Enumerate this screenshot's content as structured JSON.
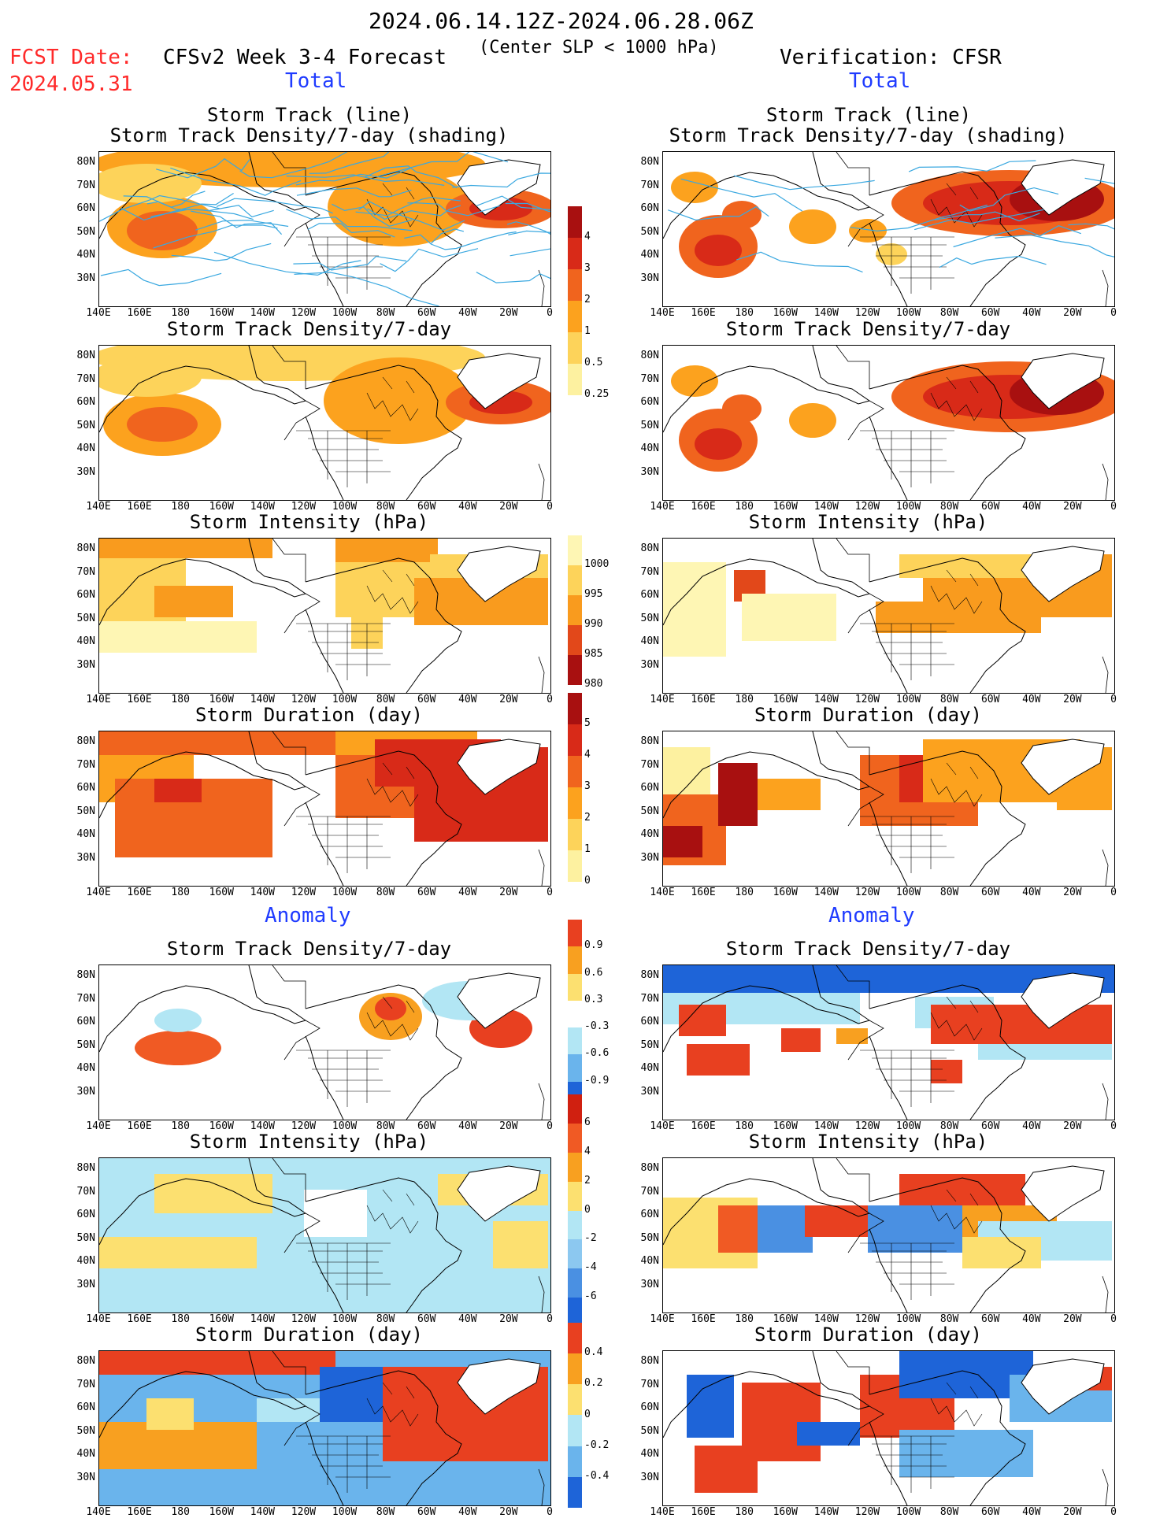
{
  "header": {
    "period": "2024.06.14.12Z-2024.06.28.06Z",
    "fcst_label": "FCST Date:",
    "fcst_date": "2024.05.31",
    "model": "CFSv2 Week 3-4 Forecast",
    "criterion": "(Center SLP < 1000 hPa)",
    "verification": "Verification: CFSR"
  },
  "sections": {
    "total": "Total",
    "anomaly": "Anomaly"
  },
  "panel_titles": {
    "track_line": "Storm Track (line)",
    "track_density_shading": "Storm Track Density/7-day (shading)",
    "track_density": "Storm Track Density/7-day",
    "intensity": "Storm Intensity (hPa)",
    "duration": "Storm Duration (day)"
  },
  "axes": {
    "lat_labels": [
      "80N",
      "70N",
      "60N",
      "50N",
      "40N",
      "30N"
    ],
    "lon_labels": [
      "140E",
      "160E",
      "180",
      "160W",
      "140W",
      "120W",
      "100W",
      "80W",
      "60W",
      "40W",
      "20W",
      "0"
    ]
  },
  "colorbars": {
    "density_total": {
      "labels": [
        "4",
        "3",
        "2",
        "1",
        "0.5",
        "0.25"
      ],
      "colors": [
        "#a81010",
        "#d82a18",
        "#f0641e",
        "#fca21e",
        "#fdd35a",
        "#fdf1a0"
      ]
    },
    "intensity_total": {
      "labels": [
        "1000",
        "995",
        "990",
        "985",
        "980"
      ],
      "colors": [
        "#fef6b4",
        "#fdd35a",
        "#f99b1e",
        "#e2481a",
        "#a81010"
      ]
    },
    "duration_total": {
      "labels": [
        "5",
        "4",
        "3",
        "2",
        "1",
        "0"
      ],
      "colors": [
        "#a81010",
        "#d82a18",
        "#f0641e",
        "#fca21e",
        "#fdd35a",
        "#fdf1a0"
      ]
    },
    "density_anom": {
      "labels": [
        "0.9",
        "0.6",
        "0.3",
        "-0.3",
        "-0.6",
        "-0.9"
      ],
      "colors": [
        "#e84020",
        "#f8a020",
        "#fce070",
        "#ffffff",
        "#b2e6f4",
        "#6ab4ec",
        "#1e64d8"
      ]
    },
    "intensity_anom": {
      "labels": [
        "6",
        "4",
        "2",
        "0",
        "-2",
        "-4",
        "-6"
      ],
      "colors": [
        "#d02010",
        "#f05a24",
        "#f8a020",
        "#fce070",
        "#b2e6f4",
        "#8cc8f0",
        "#4a90e2",
        "#1e64d8"
      ]
    },
    "duration_anom": {
      "labels": [
        "0.4",
        "0.2",
        "0",
        "-0.2",
        "-0.4"
      ],
      "colors": [
        "#e84020",
        "#f8a020",
        "#fce070",
        "#b2e6f4",
        "#6ab4ec",
        "#1e64d8"
      ]
    }
  }
}
